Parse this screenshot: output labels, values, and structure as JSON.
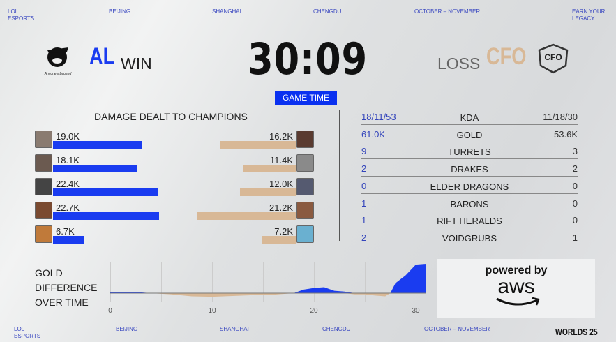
{
  "banner_top": [
    "LOL ESPORTS",
    "BEIJING",
    "SHANGHAI",
    "CHENGDU",
    "OCTOBER – NOVEMBER",
    "EARN YOUR LEGACY"
  ],
  "banner_bottom": [
    "LOL ESPORTS",
    "BEIJING",
    "SHANGHAI",
    "CHENGDU",
    "OCTOBER – NOVEMBER"
  ],
  "event_logo": "WORLDS 25",
  "blue_team": {
    "tag": "AL",
    "result": "WIN",
    "logo_text": "Anyone's Legend",
    "color": "#1a3cf0"
  },
  "red_team": {
    "tag": "CFO",
    "result": "LOSS",
    "logo_text": "CFO",
    "color": "#d8b896"
  },
  "game_time": "30:09",
  "game_time_label": "GAME TIME",
  "damage": {
    "title": "DAMAGE DEALT TO CHAMPIONS",
    "blue": [
      {
        "label": "19.0K",
        "value": 19.0
      },
      {
        "label": "18.1K",
        "value": 18.1
      },
      {
        "label": "22.4K",
        "value": 22.4
      },
      {
        "label": "22.7K",
        "value": 22.7
      },
      {
        "label": "6.7K",
        "value": 6.7
      }
    ],
    "red": [
      {
        "label": "16.2K",
        "value": 16.2
      },
      {
        "label": "11.4K",
        "value": 11.4
      },
      {
        "label": "12.0K",
        "value": 12.0
      },
      {
        "label": "21.2K",
        "value": 21.2
      },
      {
        "label": "7.2K",
        "value": 7.2
      }
    ]
  },
  "stats": [
    {
      "label": "KDA",
      "blue": "18/11/53",
      "red": "11/18/30"
    },
    {
      "label": "GOLD",
      "blue": "61.0K",
      "red": "53.6K"
    },
    {
      "label": "TURRETS",
      "blue": "9",
      "red": "3"
    },
    {
      "label": "DRAKES",
      "blue": "2",
      "red": "2"
    },
    {
      "label": "ELDER DRAGONS",
      "blue": "0",
      "red": "0"
    },
    {
      "label": "BARONS",
      "blue": "1",
      "red": "0"
    },
    {
      "label": "RIFT HERALDS",
      "blue": "1",
      "red": "0"
    },
    {
      "label": "VOIDGRUBS",
      "blue": "2",
      "red": "1"
    }
  ],
  "sponsor": {
    "line1": "powered by",
    "line2": "aws"
  },
  "chart_data": {
    "type": "area",
    "title": "GOLD DIFFERENCE OVER TIME",
    "x_ticks": [
      "0",
      "10",
      "20",
      "30"
    ],
    "xlim": [
      0,
      31
    ],
    "x": [
      0,
      3,
      4,
      6,
      8,
      10,
      12,
      14,
      16,
      18,
      19,
      20,
      21,
      22,
      23,
      24,
      25,
      26,
      27,
      27.5,
      28,
      29,
      30,
      31
    ],
    "y": [
      200,
      200,
      0,
      -300,
      -800,
      -900,
      -700,
      -500,
      -400,
      0,
      900,
      1300,
      1500,
      600,
      400,
      -300,
      -300,
      -600,
      -800,
      0,
      2500,
      4500,
      7200,
      7400
    ],
    "positive_color": "#1a3cf0",
    "negative_color": "#d8b896",
    "grid": true
  }
}
